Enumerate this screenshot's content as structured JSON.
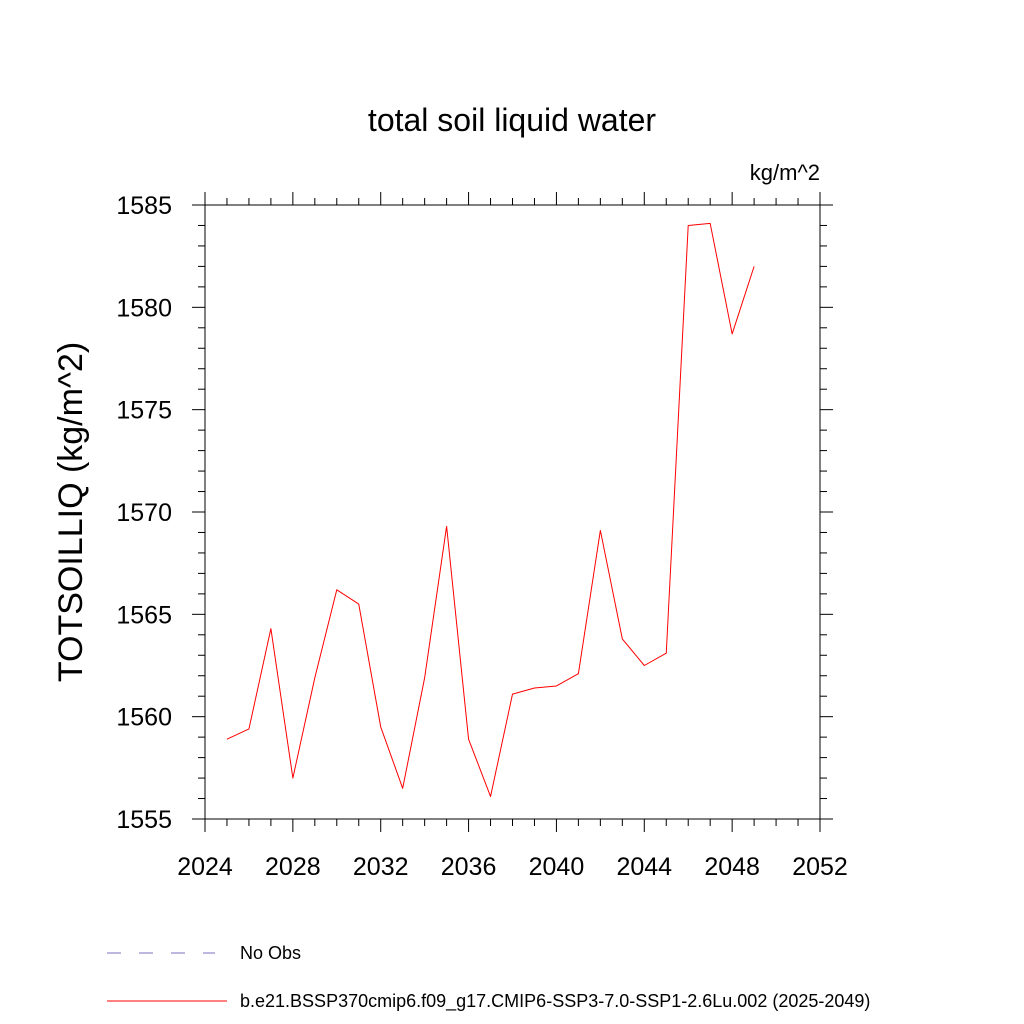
{
  "chart_data": {
    "type": "line",
    "title": "total soil liquid water",
    "units": "kg/m^2",
    "xlabel": "",
    "ylabel": "TOTSOILLIQ  (kg/m^2)",
    "xlim": [
      2024,
      2052
    ],
    "ylim": [
      1555,
      1585
    ],
    "xticks": [
      2024,
      2028,
      2032,
      2036,
      2040,
      2044,
      2048,
      2052
    ],
    "yticks": [
      1555,
      1560,
      1565,
      1570,
      1575,
      1580,
      1585
    ],
    "grid": false,
    "legend_placement": "bottom-left",
    "series": [
      {
        "name": "b.e21.BSSP370cmip6.f09_g17.CMIP6-SSP3-7.0-SSP1-2.6Lu.002 (2025-2049)",
        "color": "#ff0000",
        "style": "solid",
        "x": [
          2025,
          2026,
          2027,
          2028,
          2029,
          2030,
          2031,
          2032,
          2033,
          2034,
          2035,
          2036,
          2037,
          2038,
          2039,
          2040,
          2041,
          2042,
          2043,
          2044,
          2045,
          2046,
          2047,
          2048,
          2049
        ],
        "y": [
          1558.9,
          1559.4,
          1564.3,
          1557.0,
          1561.9,
          1566.2,
          1565.5,
          1559.5,
          1556.5,
          1561.9,
          1569.3,
          1558.9,
          1556.1,
          1561.1,
          1561.4,
          1561.5,
          1562.1,
          1569.1,
          1563.8,
          1562.5,
          1563.1,
          1584.0,
          1584.1,
          1578.7,
          1582.0
        ]
      }
    ],
    "legend": [
      {
        "label": "No Obs",
        "color": "#7b6fbf",
        "style": "dashed"
      },
      {
        "label": "b.e21.BSSP370cmip6.f09_g17.CMIP6-SSP3-7.0-SSP1-2.6Lu.002 (2025-2049)",
        "color": "#ff0000",
        "style": "solid"
      }
    ]
  }
}
